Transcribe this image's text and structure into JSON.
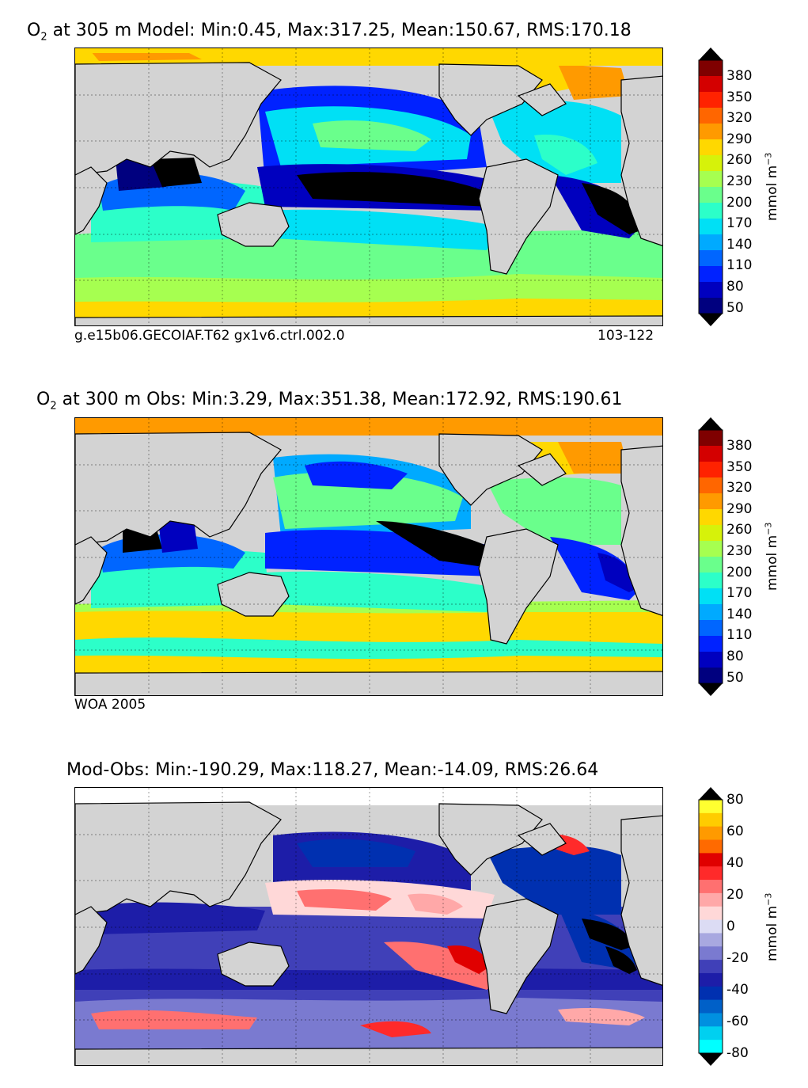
{
  "chart_data": [
    {
      "type": "heatmap",
      "title_prefix": "O",
      "title_sub": "2",
      "title_rest": " at 305 m Model: Min:0.45, Max:317.25, Mean:150.67, RMS:170.18",
      "footer_left": "g.e15b06.GECOIAF.T62 gx1v6.ctrl.002.0",
      "footer_right": "103-122",
      "colorbar_label": "mmol m",
      "colorbar_label_sup": "−3",
      "colorbar_ticks": [
        "380",
        "350",
        "320",
        "290",
        "260",
        "230",
        "200",
        "170",
        "140",
        "110",
        "80",
        "50"
      ],
      "stats": {
        "min": 0.45,
        "max": 317.25,
        "mean": 150.67,
        "rms": 170.18
      }
    },
    {
      "type": "heatmap",
      "title_prefix": "O",
      "title_sub": "2",
      "title_rest": " at 300 m Obs: Min:3.29, Max:351.38, Mean:172.92, RMS:190.61",
      "footer_left": "WOA 2005",
      "colorbar_label": "mmol m",
      "colorbar_label_sup": "−3",
      "colorbar_ticks": [
        "380",
        "350",
        "320",
        "290",
        "260",
        "230",
        "200",
        "170",
        "140",
        "110",
        "80",
        "50"
      ],
      "stats": {
        "min": 3.29,
        "max": 351.38,
        "mean": 172.92,
        "rms": 190.61
      }
    },
    {
      "type": "heatmap",
      "title": "Mod-Obs: Min:-190.29, Max:118.27, Mean:-14.09, RMS:26.64",
      "colorbar_label": "mmol m",
      "colorbar_label_sup": "−3",
      "colorbar_ticks": [
        "80",
        "60",
        "40",
        "20",
        "0",
        "-20",
        "-40",
        "-60",
        "-80"
      ],
      "stats": {
        "min": -190.29,
        "max": 118.27,
        "mean": -14.09,
        "rms": 26.64
      }
    }
  ],
  "colors": {
    "o2_scale": [
      "#00007f",
      "#0000bf",
      "#0022ff",
      "#0066ff",
      "#00aaff",
      "#00e0f5",
      "#2cffc9",
      "#6aff8c",
      "#a6ff50",
      "#d6f20a",
      "#ffd800",
      "#ff9a00",
      "#ff6600",
      "#ff2200",
      "#d40000",
      "#7f0000"
    ],
    "diff_scale": [
      "#00ffff",
      "#00d0f0",
      "#0090e0",
      "#0060c8",
      "#0030b0",
      "#1d1da8",
      "#4040b8",
      "#7a7ad0",
      "#a8a8e0",
      "#dcdcf4",
      "#ffd8d8",
      "#ffa8a8",
      "#ff7070",
      "#ff2a2a",
      "#e00000",
      "#ff6a00",
      "#ff9a00",
      "#ffcc00",
      "#ffff30"
    ],
    "land": "#d3d3d3",
    "ice": "#ffffff"
  }
}
